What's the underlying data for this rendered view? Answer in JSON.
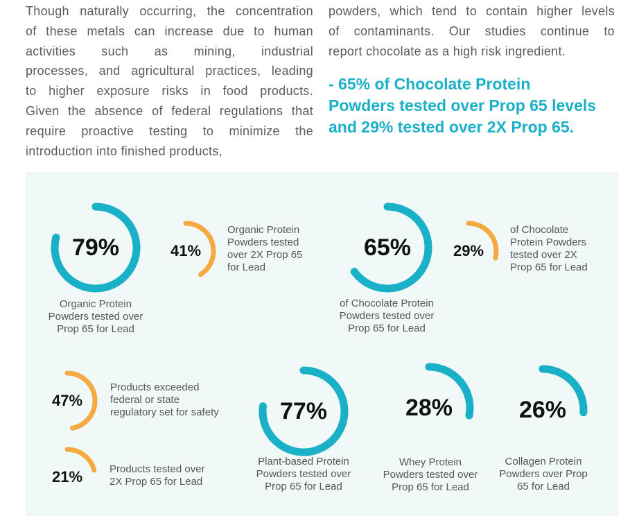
{
  "intro": {
    "left_lines": [
      "Though naturally occurring, the concentration",
      "of these metals can increase due to human",
      "activities such as mining, industrial",
      "processes, and agricultural practices, leading",
      "to higher exposure risks in food products.",
      "Given the absence of federal regulations that",
      "require proactive testing to minimize the",
      "introduction into finished products,"
    ],
    "right_lines": [
      "powders, which tend to contain higher levels",
      "of contaminants. Our studies continue to",
      "report chocolate as a high risk ingredient."
    ],
    "highlight_lines": [
      "- 65% of Chocolate Protein",
      "Powders tested over Prop 65 levels",
      "and 29% tested over 2X Prop 65."
    ]
  },
  "colors": {
    "teal": "#19b0c8",
    "orange": "#f5a941",
    "panel_bg": "#f1f9f8",
    "body_text": "#5b5b5b"
  },
  "stats": [
    {
      "id": "organic-over-prop65",
      "value": "79%",
      "fraction": 0.79,
      "color": "teal",
      "caption_lines": [
        "Organic Protein",
        "Powders tested over",
        "Prop 65 for Lead"
      ]
    },
    {
      "id": "organic-over-2x-prop65",
      "value": "41%",
      "fraction": 0.41,
      "color": "orange",
      "caption_lines": [
        "Organic Protein",
        "Powders tested",
        "over 2X Prop 65",
        "for Lead"
      ]
    },
    {
      "id": "chocolate-over-prop65",
      "value": "65%",
      "fraction": 0.65,
      "color": "teal",
      "caption_lines": [
        "of Chocolate Protein",
        "Powders tested over",
        "Prop 65 for Lead"
      ]
    },
    {
      "id": "chocolate-over-2x-prop65",
      "value": "29%",
      "fraction": 0.29,
      "color": "orange",
      "caption_lines": [
        "of Chocolate",
        "Protein Powders",
        "tested over 2X",
        "Prop 65 for Lead"
      ]
    },
    {
      "id": "exceeded-regulatory",
      "value": "47%",
      "fraction": 0.47,
      "color": "orange",
      "caption_lines": [
        "Products exceeded",
        "federal or state",
        "regulatory set for safety"
      ]
    },
    {
      "id": "products-over-2x-prop65",
      "value": "21%",
      "fraction": 0.21,
      "color": "orange",
      "caption_lines": [
        "Products tested over",
        "2X Prop 65 for Lead"
      ]
    },
    {
      "id": "plant-based-over-prop65",
      "value": "77%",
      "fraction": 0.77,
      "color": "teal",
      "caption_lines": [
        "Plant-based Protein",
        "Powders tested over",
        "Prop 65 for Lead"
      ]
    },
    {
      "id": "whey-over-prop65",
      "value": "28%",
      "fraction": 0.28,
      "color": "teal",
      "caption_lines": [
        "Whey Protein",
        "Powders tested over",
        "Prop 65 for Lead"
      ]
    },
    {
      "id": "collagen-over-prop65",
      "value": "26%",
      "fraction": 0.26,
      "color": "teal",
      "caption_lines": [
        "Collagen Protein",
        "Powders over Prop",
        "65 for Lead"
      ]
    }
  ]
}
